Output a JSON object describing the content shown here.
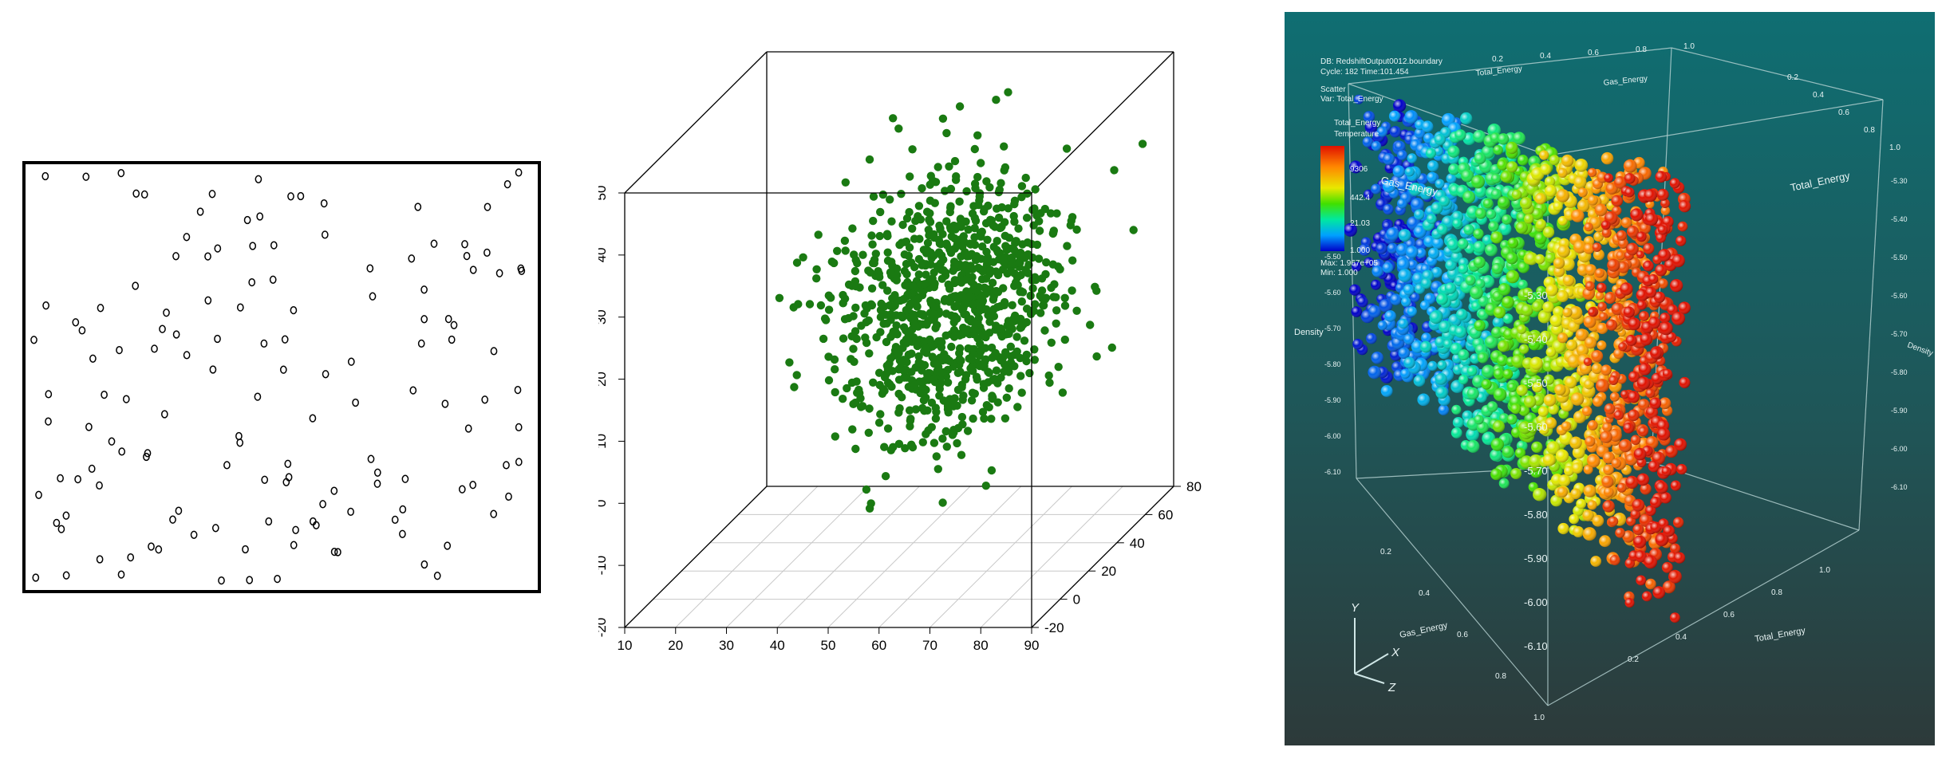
{
  "chart_data": [
    {
      "type": "scatter",
      "title": "",
      "xlabel": "",
      "ylabel": "",
      "grid": false,
      "marker": "hollow-circle",
      "point_count": 142
    },
    {
      "type": "scatter",
      "projection": "3d",
      "title": "",
      "xlabel": "",
      "ylabel": "",
      "zlabel": "",
      "x_ticks": [
        "10",
        "20",
        "30",
        "40",
        "50",
        "60",
        "70",
        "80",
        "90"
      ],
      "y_ticks": [
        "-20",
        "0",
        "20",
        "40",
        "60",
        "80"
      ],
      "z_ticks": [
        "-20",
        "-10",
        "0",
        "10",
        "20",
        "30",
        "40",
        "50"
      ],
      "xlim": [
        10,
        90
      ],
      "ylim": [
        -20,
        80
      ],
      "zlim": [
        -20,
        50
      ],
      "color": "#1a7a12",
      "grid": "floor",
      "point_count": 1000,
      "x_mean": 60,
      "x_sd": 10,
      "y_mean": 30,
      "y_sd": 20,
      "z_mean": 20,
      "z_sd": 10
    },
    {
      "type": "scatter",
      "projection": "3d",
      "info_lines": [
        "DB: RedshiftOutput0012.boundary",
        "Cycle: 182     Time:101.454"
      ],
      "plot_lines": [
        "Scatter",
        "Var: Total_Energy"
      ],
      "legend_lines": [
        "Total_Energy",
        "Temperature"
      ],
      "legend_ticks": [
        "9306",
        "442.4",
        "21.03",
        "1.000"
      ],
      "legend_minmax": [
        "Max: 1.967e+05",
        "Min: 1.000"
      ],
      "axis_titles": [
        "Gas_Energy",
        "Total_Energy",
        "Density"
      ],
      "density_ticks": [
        "-5.30",
        "-5.40",
        "-5.50",
        "-5.60",
        "-5.70",
        "-5.80",
        "-5.90",
        "-6.00",
        "-6.10"
      ],
      "energy_ticks": [
        "0.2",
        "0.4",
        "0.6",
        "0.8",
        "1.0"
      ],
      "triad_labels": [
        "Y",
        "X",
        "Z"
      ],
      "colormap": [
        "#0000c8",
        "#00a0ff",
        "#00e8a0",
        "#40e000",
        "#e8e800",
        "#ff8800",
        "#e01000"
      ],
      "background": [
        "#0f6e72",
        "#2d3a3a"
      ]
    }
  ]
}
